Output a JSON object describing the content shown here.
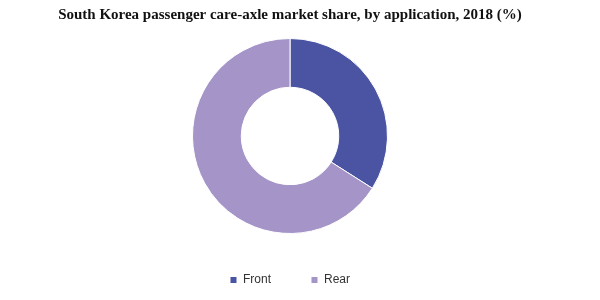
{
  "chart_data": {
    "type": "doughnut",
    "title": "South Korea passenger care-axle market share, by application, 2018 (%)",
    "categories": [
      "Front",
      "Rear"
    ],
    "values": [
      34,
      66
    ],
    "colors": [
      "#4a54a3",
      "#a494c8"
    ],
    "legend": "bottom"
  }
}
